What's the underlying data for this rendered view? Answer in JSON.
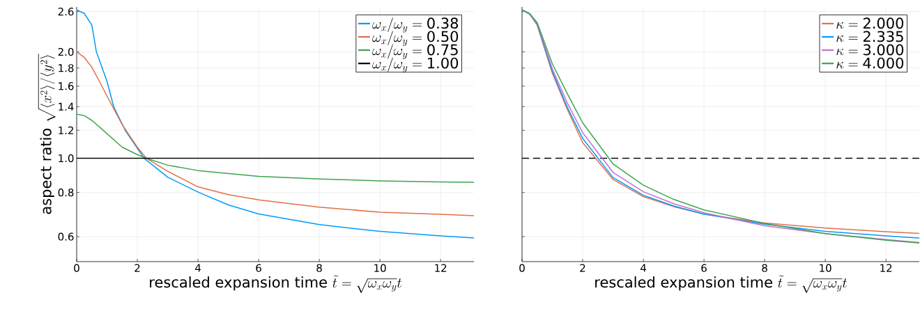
{
  "chart_data": [
    {
      "type": "line",
      "xlabel": "\\text{rescaled expansion time }\\tilde{t} = \\sqrt{\\omega_x\\omega_y}t",
      "ylabel": "\\text{aspect ratio }\\sqrt{\\langle x^2\\rangle/\\langle y^2\\rangle}",
      "xlim": [
        0,
        13.1
      ],
      "ylim": [
        0.51,
        2.68
      ],
      "xticks": [
        0,
        2,
        4,
        6,
        8,
        10,
        12
      ],
      "yticks": [
        {
          "value": 0.6,
          "label": "0.6"
        },
        {
          "value": 0.8,
          "label": "0.8"
        },
        {
          "value": 1.0,
          "label": "1.0"
        },
        {
          "value": 1.2,
          "label": "1.2"
        },
        {
          "value": 1.4,
          "label": "1.4"
        },
        {
          "value": 1.6,
          "label": "1.6"
        },
        {
          "value": 1.8,
          "label": "1.8"
        },
        {
          "value": 2.0,
          "label": "2.0"
        },
        {
          "value": 2.6,
          "label": "2.6"
        }
      ],
      "log": "y",
      "grid": true,
      "legend": "top right",
      "series": [
        {
          "name": "\\omega_x/\\omega_y = \\text{0.38}",
          "color": "#009af9",
          "x": [
            0,
            0.25,
            0.5,
            0.65,
            1,
            1.22,
            1.6,
            2.22,
            3,
            4.03,
            5,
            6,
            8,
            10,
            12,
            13.1
          ],
          "values": [
            2.63,
            2.57,
            2.38,
            2.0,
            1.65,
            1.4,
            1.2,
            1.0,
            0.884,
            0.8,
            0.738,
            0.696,
            0.649,
            0.621,
            0.603,
            0.595
          ]
        },
        {
          "name": "\\omega_x/\\omega_y = \\text{0.50}",
          "color": "#e26f46",
          "x": [
            0,
            0.25,
            0.5,
            0.75,
            1,
            1.5,
            2,
            2.3,
            3,
            4,
            5,
            6,
            8,
            10,
            12,
            13.1
          ],
          "values": [
            2.0,
            1.93,
            1.81,
            1.65,
            1.5,
            1.245,
            1.075,
            1.0,
            0.919,
            0.83,
            0.789,
            0.763,
            0.727,
            0.704,
            0.694,
            0.688
          ]
        },
        {
          "name": "\\omega_x/\\omega_y = \\text{0.75}",
          "color": "#3ea44e",
          "x": [
            0,
            0.25,
            0.5,
            1,
            1.5,
            2,
            2.3,
            3,
            4,
            6,
            8,
            10,
            12,
            13.1
          ],
          "values": [
            1.333,
            1.32,
            1.28,
            1.174,
            1.075,
            1.024,
            1.0,
            0.956,
            0.923,
            0.889,
            0.874,
            0.863,
            0.857,
            0.855
          ]
        },
        {
          "name": "\\omega_x/\\omega_y = \\text{1.00}",
          "color": "#000000",
          "x": [
            0,
            13.1
          ],
          "values": [
            1.0,
            1.0
          ]
        }
      ]
    },
    {
      "type": "line",
      "xlabel": "\\text{rescaled expansion time }\\tilde{t} = \\sqrt{\\omega_x\\omega_y}t",
      "xlim": [
        0,
        13.1
      ],
      "ylim": [
        0.51,
        2.68
      ],
      "xticks": [
        0,
        2,
        4,
        6,
        8,
        10,
        12
      ],
      "yticks": [
        {
          "value": 0.6,
          "label": null
        },
        {
          "value": 0.8,
          "label": null
        },
        {
          "value": 1.0,
          "label": null
        },
        {
          "value": 1.2,
          "label": null
        },
        {
          "value": 1.4,
          "label": null
        },
        {
          "value": 1.6,
          "label": null
        },
        {
          "value": 1.8,
          "label": null
        },
        {
          "value": 2.0,
          "label": null
        },
        {
          "value": 2.6,
          "label": null
        }
      ],
      "tick_labels": "x",
      "log": "y",
      "grid": true,
      "legend": "top right",
      "ref_lines": [
        {
          "axis": "y",
          "value": 1.0,
          "color": "#000000",
          "line_style": "dashed"
        }
      ],
      "series": [
        {
          "name": "\\kappa = \\text{2.000}",
          "color": "#e26f46",
          "x": [
            0,
            0.25,
            0.5,
            1,
            1.5,
            2,
            3,
            4,
            5,
            6,
            8,
            10,
            12,
            13.1
          ],
          "values": [
            2.63,
            2.56,
            2.38,
            1.74,
            1.37,
            1.107,
            0.871,
            0.779,
            0.73,
            0.695,
            0.656,
            0.635,
            0.62,
            0.613
          ]
        },
        {
          "name": "\\kappa = \\text{2.335}",
          "color": "#009af9",
          "x": [
            0,
            0.25,
            0.5,
            1,
            1.5,
            2,
            3,
            4,
            5,
            6,
            8,
            10,
            12,
            13.1
          ],
          "values": [
            2.63,
            2.56,
            2.39,
            1.76,
            1.39,
            1.138,
            0.882,
            0.786,
            0.733,
            0.695,
            0.651,
            0.621,
            0.603,
            0.594
          ]
        },
        {
          "name": "\\kappa = \\text{3.000}",
          "color": "#c271d2",
          "x": [
            0,
            0.25,
            0.5,
            1,
            1.5,
            2,
            3,
            4,
            5,
            6,
            8,
            10,
            12,
            13.1
          ],
          "values": [
            2.63,
            2.56,
            2.4,
            1.79,
            1.43,
            1.181,
            0.912,
            0.804,
            0.744,
            0.701,
            0.644,
            0.612,
            0.589,
            0.578
          ]
        },
        {
          "name": "\\kappa = \\text{4.000}",
          "color": "#3ea44e",
          "x": [
            0,
            0.25,
            0.5,
            1,
            1.5,
            2,
            3,
            4,
            5,
            6,
            8,
            10,
            12,
            13.1
          ],
          "values": [
            2.63,
            2.57,
            2.42,
            1.85,
            1.52,
            1.26,
            0.964,
            0.839,
            0.765,
            0.714,
            0.654,
            0.612,
            0.586,
            0.576
          ]
        }
      ]
    }
  ]
}
